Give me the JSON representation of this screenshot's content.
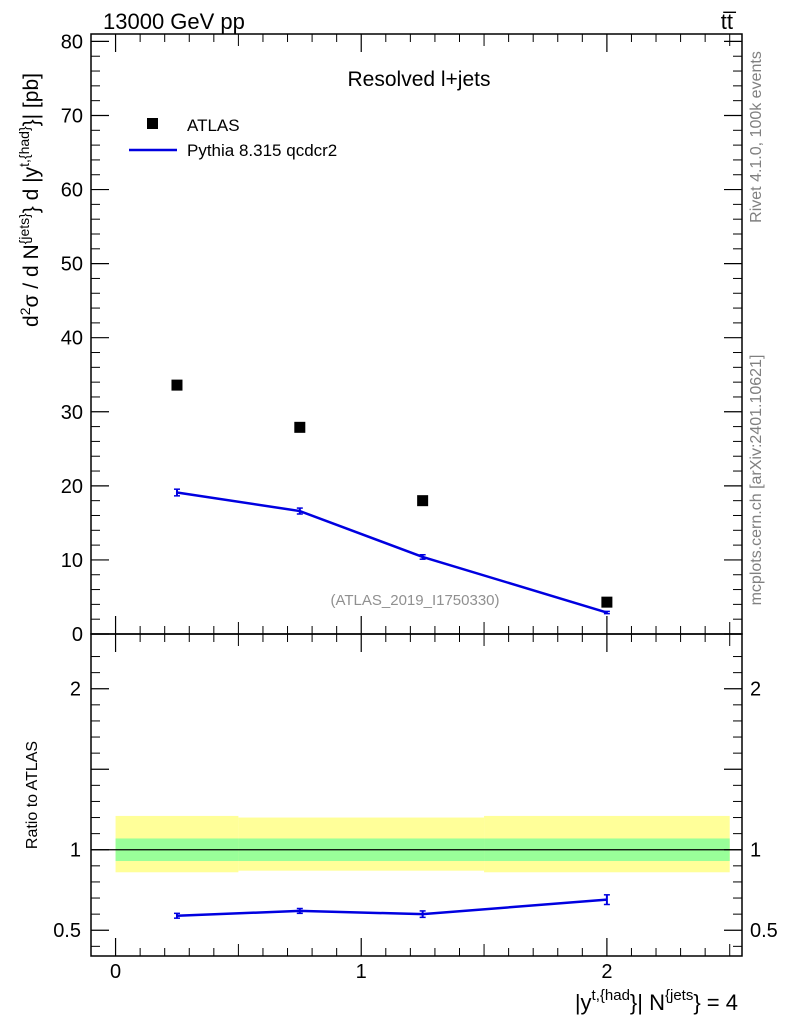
{
  "header": {
    "left": "13000 GeV pp",
    "right": "tt̅"
  },
  "side_labels": {
    "rivet": "Rivet 4.1.0,  100k events",
    "mcplots": "mcplots.cern.ch [arXiv:2401.10621]"
  },
  "chart_data": [
    {
      "type": "scatter+line",
      "title": "Resolved l+jets",
      "watermark": "(ATLAS_2019_I1750330)",
      "ylabel": "d²σ / d N^{jets} d |y^{t,{had}}| [pb]",
      "xlabel": "|y^{t,{had}}| N^{jets} = 4",
      "xlim": [
        -0.1,
        2.55
      ],
      "ylim": [
        0,
        81
      ],
      "xticks": [
        0,
        1,
        2
      ],
      "yticks": [
        0,
        10,
        20,
        30,
        40,
        50,
        60,
        70,
        80
      ],
      "ytick_labels": [
        "0",
        "10",
        "20",
        "30",
        "40",
        "50",
        "60",
        "70",
        "80"
      ],
      "xtick_labels": [
        "0",
        "1",
        "2"
      ],
      "legend": {
        "placement": "top-left",
        "entries": [
          "ATLAS",
          "Pythia 8.315 qcdcr2"
        ]
      },
      "series": [
        {
          "name": "ATLAS",
          "style": "marker",
          "x": [
            0.25,
            0.75,
            1.25,
            2.0
          ],
          "y": [
            33.6,
            27.9,
            18.0,
            4.3
          ],
          "color": "#000000"
        },
        {
          "name": "Pythia 8.315 qcdcr2",
          "style": "line",
          "x": [
            0.25,
            0.75,
            1.25,
            2.0
          ],
          "y": [
            19.1,
            16.6,
            10.4,
            2.9
          ],
          "err": [
            0.45,
            0.4,
            0.3,
            0.15
          ],
          "color": "#0000e0"
        }
      ]
    },
    {
      "type": "ratio",
      "ylabel": "Ratio to ATLAS",
      "xlim": [
        -0.1,
        2.55
      ],
      "ylim": [
        0.34,
        2.34
      ],
      "yticks": [
        0.5,
        1,
        2
      ],
      "ytick_labels": [
        "0.5",
        "1",
        "2"
      ],
      "bands": [
        {
          "name": "total uncertainty",
          "color": "#ffff99",
          "edges": [
            0,
            0.5,
            1.5,
            2.5
          ],
          "lo": [
            0.86,
            0.87,
            0.86
          ],
          "hi": [
            1.21,
            1.2,
            1.21
          ]
        },
        {
          "name": "statistical uncertainty",
          "color": "#99ff99",
          "edges": [
            0,
            0.5,
            1.5,
            2.5
          ],
          "lo": [
            0.93,
            0.93,
            0.93
          ],
          "hi": [
            1.07,
            1.07,
            1.07
          ]
        }
      ],
      "series": [
        {
          "name": "Pythia 8.315 qcdcr2",
          "x": [
            0.25,
            0.75,
            1.25,
            2.0
          ],
          "y": [
            0.59,
            0.62,
            0.6,
            0.69
          ],
          "err": [
            0.015,
            0.015,
            0.02,
            0.03
          ],
          "color": "#0000e0"
        }
      ]
    }
  ]
}
